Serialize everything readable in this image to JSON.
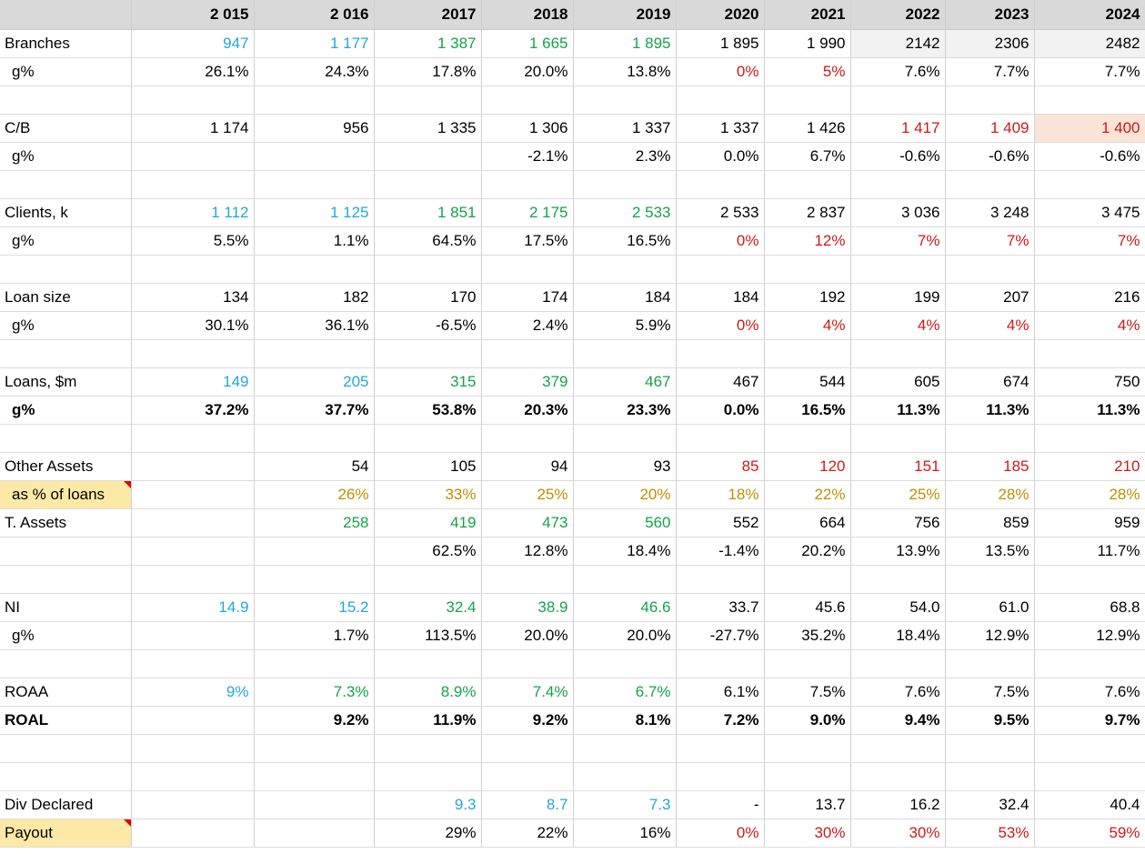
{
  "header": [
    "",
    "2 015",
    "2 016",
    "2017",
    "2018",
    "2019",
    "2020",
    "2021",
    "2022",
    "2023",
    "2024"
  ],
  "rows": [
    {
      "label": "Branches",
      "cells": [
        "947",
        "1 177",
        "1 387",
        "1 665",
        "1 895",
        "1 895",
        "1 990",
        "2142",
        "2306",
        "2482"
      ],
      "colors": [
        "blue",
        "blue",
        "green",
        "green",
        "green",
        "",
        "",
        "",
        "",
        ""
      ],
      "bg": [
        "",
        "",
        "",
        "",
        "",
        "",
        "",
        "shade",
        "shade",
        "shade"
      ]
    },
    {
      "label": "g%",
      "indent": true,
      "cells": [
        "26.1%",
        "24.3%",
        "17.8%",
        "20.0%",
        "13.8%",
        "0%",
        "5%",
        "7.6%",
        "7.7%",
        "7.7%"
      ],
      "colors": [
        "",
        "",
        "",
        "",
        "",
        "red",
        "red",
        "",
        "",
        ""
      ]
    },
    {
      "label": "",
      "cells": [
        "",
        "",
        "",
        "",
        "",
        "",
        "",
        "",
        "",
        ""
      ]
    },
    {
      "label": "C/B",
      "cells": [
        "1 174",
        "956",
        "1 335",
        "1 306",
        "1 337",
        "1 337",
        "1 426",
        "1 417",
        "1 409",
        "1 400"
      ],
      "colors": [
        "",
        "",
        "",
        "",
        "",
        "",
        "",
        "red",
        "red",
        "red"
      ],
      "bg": [
        "",
        "",
        "",
        "",
        "",
        "",
        "",
        "",
        "",
        "peach"
      ]
    },
    {
      "label": "g%",
      "indent": true,
      "cells": [
        "",
        "",
        "",
        "-2.1%",
        "2.3%",
        "0.0%",
        "6.7%",
        "-0.6%",
        "-0.6%",
        "-0.6%"
      ]
    },
    {
      "label": "",
      "cells": [
        "",
        "",
        "",
        "",
        "",
        "",
        "",
        "",
        "",
        ""
      ]
    },
    {
      "label": "Clients, k",
      "cells": [
        "1 112",
        "1 125",
        "1 851",
        "2 175",
        "2 533",
        "2 533",
        "2 837",
        "3 036",
        "3 248",
        "3 475"
      ],
      "colors": [
        "blue",
        "blue",
        "green",
        "green",
        "green",
        "",
        "",
        "",
        "",
        ""
      ]
    },
    {
      "label": "g%",
      "indent": true,
      "cells": [
        "5.5%",
        "1.1%",
        "64.5%",
        "17.5%",
        "16.5%",
        "0%",
        "12%",
        "7%",
        "7%",
        "7%"
      ],
      "colors": [
        "",
        "",
        "",
        "",
        "",
        "red",
        "red",
        "red",
        "red",
        "red"
      ]
    },
    {
      "label": "",
      "cells": [
        "",
        "",
        "",
        "",
        "",
        "",
        "",
        "",
        "",
        ""
      ]
    },
    {
      "label": "Loan size",
      "cells": [
        "134",
        "182",
        "170",
        "174",
        "184",
        "184",
        "192",
        "199",
        "207",
        "216"
      ]
    },
    {
      "label": "g%",
      "indent": true,
      "cells": [
        "30.1%",
        "36.1%",
        "-6.5%",
        "2.4%",
        "5.9%",
        "0%",
        "4%",
        "4%",
        "4%",
        "4%"
      ],
      "colors": [
        "",
        "",
        "",
        "",
        "",
        "red",
        "red",
        "red",
        "red",
        "red"
      ]
    },
    {
      "label": "",
      "cells": [
        "",
        "",
        "",
        "",
        "",
        "",
        "",
        "",
        "",
        ""
      ]
    },
    {
      "label": "Loans, $m",
      "cells": [
        "149",
        "205",
        "315",
        "379",
        "467",
        "467",
        "544",
        "605",
        "674",
        "750"
      ],
      "colors": [
        "blue",
        "blue",
        "green",
        "green",
        "green",
        "",
        "",
        "",
        "",
        ""
      ]
    },
    {
      "label": "g%",
      "indent": true,
      "bold": true,
      "cells": [
        "37.2%",
        "37.7%",
        "53.8%",
        "20.3%",
        "23.3%",
        "0.0%",
        "16.5%",
        "11.3%",
        "11.3%",
        "11.3%"
      ]
    },
    {
      "label": "",
      "cells": [
        "",
        "",
        "",
        "",
        "",
        "",
        "",
        "",
        "",
        ""
      ]
    },
    {
      "label": "Other Assets",
      "cells": [
        "",
        "54",
        "105",
        "94",
        "93",
        "85",
        "120",
        "151",
        "185",
        "210"
      ],
      "colors": [
        "",
        "",
        "",
        "",
        "",
        "red",
        "red",
        "red",
        "red",
        "red"
      ]
    },
    {
      "label": "as % of loans",
      "indent": true,
      "yellow": true,
      "comment": true,
      "cells": [
        "",
        "26%",
        "33%",
        "25%",
        "20%",
        "18%",
        "22%",
        "25%",
        "28%",
        "28%"
      ],
      "colors": [
        "gold",
        "gold",
        "gold",
        "gold",
        "gold",
        "gold",
        "gold",
        "gold",
        "gold",
        "gold"
      ]
    },
    {
      "label": "T. Assets",
      "cells": [
        "",
        "258",
        "419",
        "473",
        "560",
        "552",
        "664",
        "756",
        "859",
        "959"
      ],
      "colors": [
        "",
        "green",
        "green",
        "green",
        "green",
        "",
        "",
        "",
        "",
        ""
      ]
    },
    {
      "label": "",
      "cells": [
        "",
        "",
        "62.5%",
        "12.8%",
        "18.4%",
        "-1.4%",
        "20.2%",
        "13.9%",
        "13.5%",
        "11.7%"
      ]
    },
    {
      "label": "",
      "cells": [
        "",
        "",
        "",
        "",
        "",
        "",
        "",
        "",
        "",
        ""
      ]
    },
    {
      "label": "NI",
      "cells": [
        "14.9",
        "15.2",
        "32.4",
        "38.9",
        "46.6",
        "33.7",
        "45.6",
        "54.0",
        "61.0",
        "68.8"
      ],
      "colors": [
        "blue",
        "blue",
        "green",
        "green",
        "green",
        "",
        "",
        "",
        "",
        ""
      ]
    },
    {
      "label": "g%",
      "indent": true,
      "cells": [
        "",
        "1.7%",
        "113.5%",
        "20.0%",
        "20.0%",
        "-27.7%",
        "35.2%",
        "18.4%",
        "12.9%",
        "12.9%"
      ]
    },
    {
      "label": "",
      "cells": [
        "",
        "",
        "",
        "",
        "",
        "",
        "",
        "",
        "",
        ""
      ]
    },
    {
      "label": "ROAA",
      "cells": [
        "9%",
        "7.3%",
        "8.9%",
        "7.4%",
        "6.7%",
        "6.1%",
        "7.5%",
        "7.6%",
        "7.5%",
        "7.6%"
      ],
      "colors": [
        "blue",
        "green",
        "green",
        "green",
        "green",
        "",
        "",
        "",
        "",
        ""
      ]
    },
    {
      "label": "ROAL",
      "bold": true,
      "cells": [
        "",
        "9.2%",
        "11.9%",
        "9.2%",
        "8.1%",
        "7.2%",
        "9.0%",
        "9.4%",
        "9.5%",
        "9.7%"
      ]
    },
    {
      "label": "",
      "cells": [
        "",
        "",
        "",
        "",
        "",
        "",
        "",
        "",
        "",
        ""
      ]
    },
    {
      "label": "",
      "cells": [
        "",
        "",
        "",
        "",
        "",
        "",
        "",
        "",
        "",
        ""
      ]
    },
    {
      "label": "Div Declared",
      "cells": [
        "",
        "",
        "9.3",
        "8.7",
        "7.3",
        "-",
        "13.7",
        "16.2",
        "32.4",
        "40.4"
      ],
      "colors": [
        "",
        "",
        "blue",
        "blue",
        "blue",
        "",
        "",
        "",
        "",
        ""
      ]
    },
    {
      "label": "Payout",
      "yellow": true,
      "comment": true,
      "cells": [
        "",
        "",
        "29%",
        "22%",
        "16%",
        "0%",
        "30%",
        "30%",
        "53%",
        "59%"
      ],
      "colors": [
        "",
        "",
        "",
        "",
        "",
        "red",
        "red",
        "red",
        "red",
        "red"
      ]
    }
  ]
}
